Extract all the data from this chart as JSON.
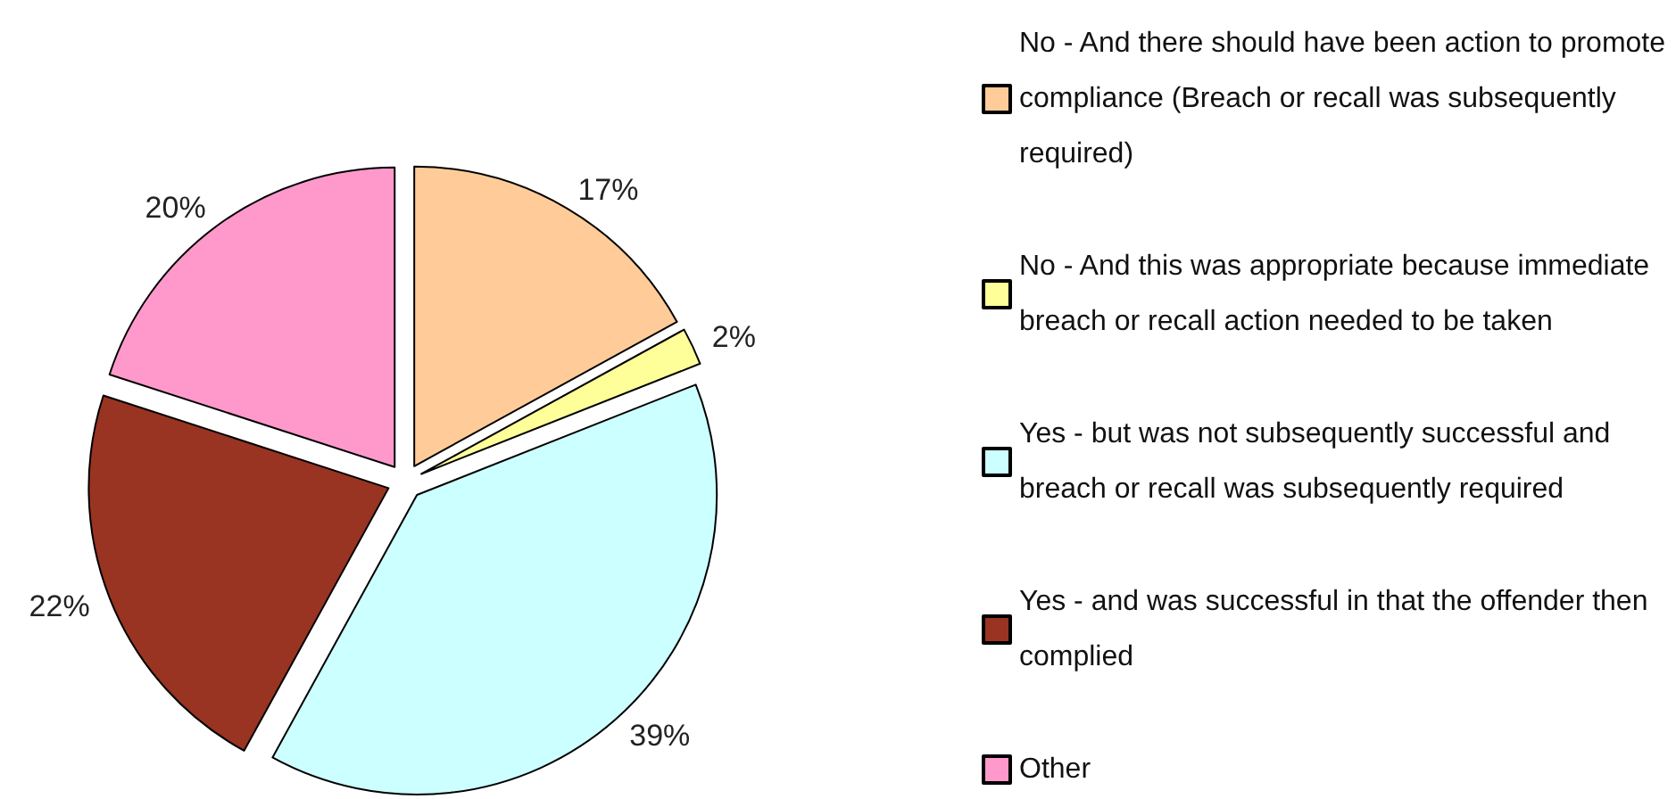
{
  "chart_data": {
    "type": "pie",
    "categories": [
      "No - And there should have been action to promote compliance (Breach or recall was subsequently required)",
      "No - And this was appropriate because immediate breach or recall action needed to be taken",
      "Yes - but was not subsequently successful and breach or recall was subsequently required",
      "Yes - and was successful in that the offender then complied",
      "Other"
    ],
    "values": [
      17,
      2,
      39,
      22,
      20
    ],
    "colors": [
      "#ffcc99",
      "#ffff99",
      "#ccffff",
      "#993322",
      "#ff99cc"
    ],
    "value_labels": [
      "17%",
      "2%",
      "39%",
      "22%",
      "20%"
    ],
    "legend": "right"
  }
}
